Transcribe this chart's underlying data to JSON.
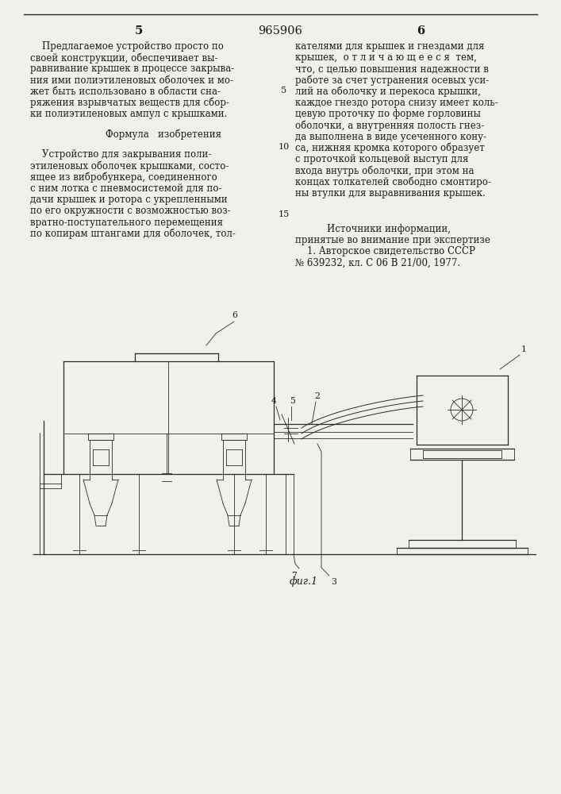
{
  "page_number_center": "965906",
  "page_number_left": "5",
  "page_number_right": "6",
  "bg_color": "#f2f0eb",
  "text_color": "#1a1a1a",
  "col1_texts": [
    "    Предлагаемое устройство просто по",
    "своей конструкции, обеспечивает вы-",
    "равнивание крышек в процессе закрыва-",
    "ния ими полиэтиленовых оболочек и мо-",
    "жет быть использовано в области сна-",
    "ряжения взрывчатых веществ для сбор-",
    "ки полиэтиленовых ампул с крышками."
  ],
  "formula_header": "Формула   изобретения",
  "col1_formula_texts": [
    "    Устройство для закрывания поли-",
    "этиленовых оболочек крышками, состо-",
    "ящее из вибробункера, соединенного",
    "с ним лотка с пневмосистемой для по-",
    "дачи крышек и ротора с укрепленными",
    "по его окружности с возможностью воз-",
    "вратно-поступательного перемещения",
    "по копирам штангами для оболочек, тол-"
  ],
  "col2_texts": [
    "кателями для крышек и гнездами для",
    "крышек,  о т л и ч а ю щ е е с я  тем,",
    "что, с целью повышения надежности в",
    "работе за счет устранения осевых уси-",
    "лий на оболочку и перекоса крышки,",
    "каждое гнездо ротора снизу имеет коль-",
    "цевую проточку по форме горловины",
    "оболочки, а внутренняя полость гнез-",
    "да выполнена в виде усеченного кону-",
    "са, нижняя кромка которого образует",
    "с проточкой кольцевой выступ для",
    "входа внутрь оболочки, при этом на",
    "концах толкателей свободно смонтиро-",
    "ны втулки для выравнивания крышек."
  ],
  "sources_header": "    Источники информации,",
  "sources_texts": [
    "принятые во внимание при экспертизе",
    "    1. Авторское свидетельство СССР",
    "№ 639232, кл. С 06 В 21/00, 1977."
  ],
  "fig_caption": "фиг.1",
  "line_numbers": [
    "5",
    "10",
    "15"
  ],
  "font_size_body": 8.5,
  "font_size_header": 9.5,
  "font_size_page": 10.5
}
